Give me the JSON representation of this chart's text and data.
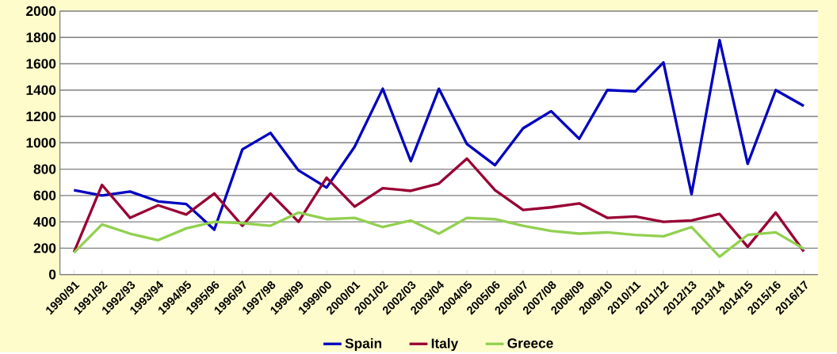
{
  "chart_data": {
    "type": "line",
    "categories": [
      "1990/91",
      "1991/92",
      "1992/93",
      "1993/94",
      "1994/95",
      "1995/96",
      "1996/97",
      "1997/98",
      "1998/99",
      "1999/00",
      "2000/01",
      "2001/02",
      "2002/03",
      "2003/04",
      "2004/05",
      "2005/06",
      "2006/07",
      "2007/08",
      "2008/09",
      "2009/10",
      "2010/11",
      "2011/12",
      "2012/13",
      "2013/14",
      "2014/15",
      "2015/16",
      "2016/17"
    ],
    "series": [
      {
        "name": "Spain",
        "color": "#0000c0",
        "values": [
          640,
          600,
          630,
          555,
          535,
          340,
          950,
          1075,
          790,
          660,
          970,
          1410,
          860,
          1410,
          990,
          830,
          1110,
          1240,
          1030,
          1400,
          1390,
          1610,
          610,
          1780,
          840,
          1400,
          1280
        ]
      },
      {
        "name": "Italy",
        "color": "#990033",
        "values": [
          170,
          680,
          430,
          525,
          455,
          615,
          370,
          615,
          400,
          735,
          515,
          655,
          635,
          690,
          880,
          640,
          490,
          510,
          540,
          430,
          440,
          400,
          410,
          460,
          210,
          470,
          175
        ]
      },
      {
        "name": "Greece",
        "color": "#92d050",
        "values": [
          165,
          380,
          310,
          260,
          350,
          400,
          390,
          370,
          470,
          420,
          430,
          360,
          410,
          310,
          430,
          420,
          370,
          330,
          310,
          320,
          300,
          290,
          360,
          135,
          300,
          320,
          195
        ]
      }
    ],
    "ylim": [
      0,
      2000
    ],
    "yticks": [
      0,
      200,
      400,
      600,
      800,
      1000,
      1200,
      1400,
      1600,
      1800,
      2000
    ],
    "grid": "y",
    "legend": "bottom",
    "marker": "none",
    "line_style": "solid"
  }
}
